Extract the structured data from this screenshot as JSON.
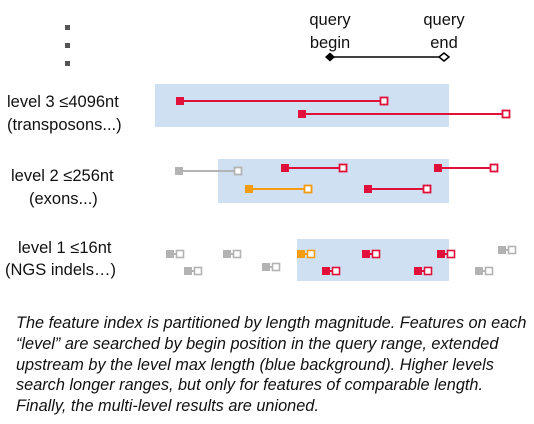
{
  "query": {
    "begin_label_line1": "query",
    "begin_label_line2": "begin",
    "end_label_line1": "query",
    "end_label_line2": "end"
  },
  "levels": [
    {
      "title": "level 3 ≤4096nt",
      "subtitle": "(transposons...)"
    },
    {
      "title": "level 2 ≤256nt",
      "subtitle": "(exons...)"
    },
    {
      "title": "level 1 ≤16nt",
      "subtitle": "(NGS indels…)"
    }
  ],
  "colors": {
    "range_background": "#cfe0f3",
    "red": "#e0103a",
    "orange": "#f39c12",
    "gray": "#b3b3b3",
    "dots": "#555555"
  },
  "caption": "The feature index is partitioned by length magnitude. Features on each “level” are searched by begin position in the query range, extended upstream by the level max length (blue background). Higher levels search longer ranges, but only for features of comparable length. Finally, the multi-level results are unioned."
}
